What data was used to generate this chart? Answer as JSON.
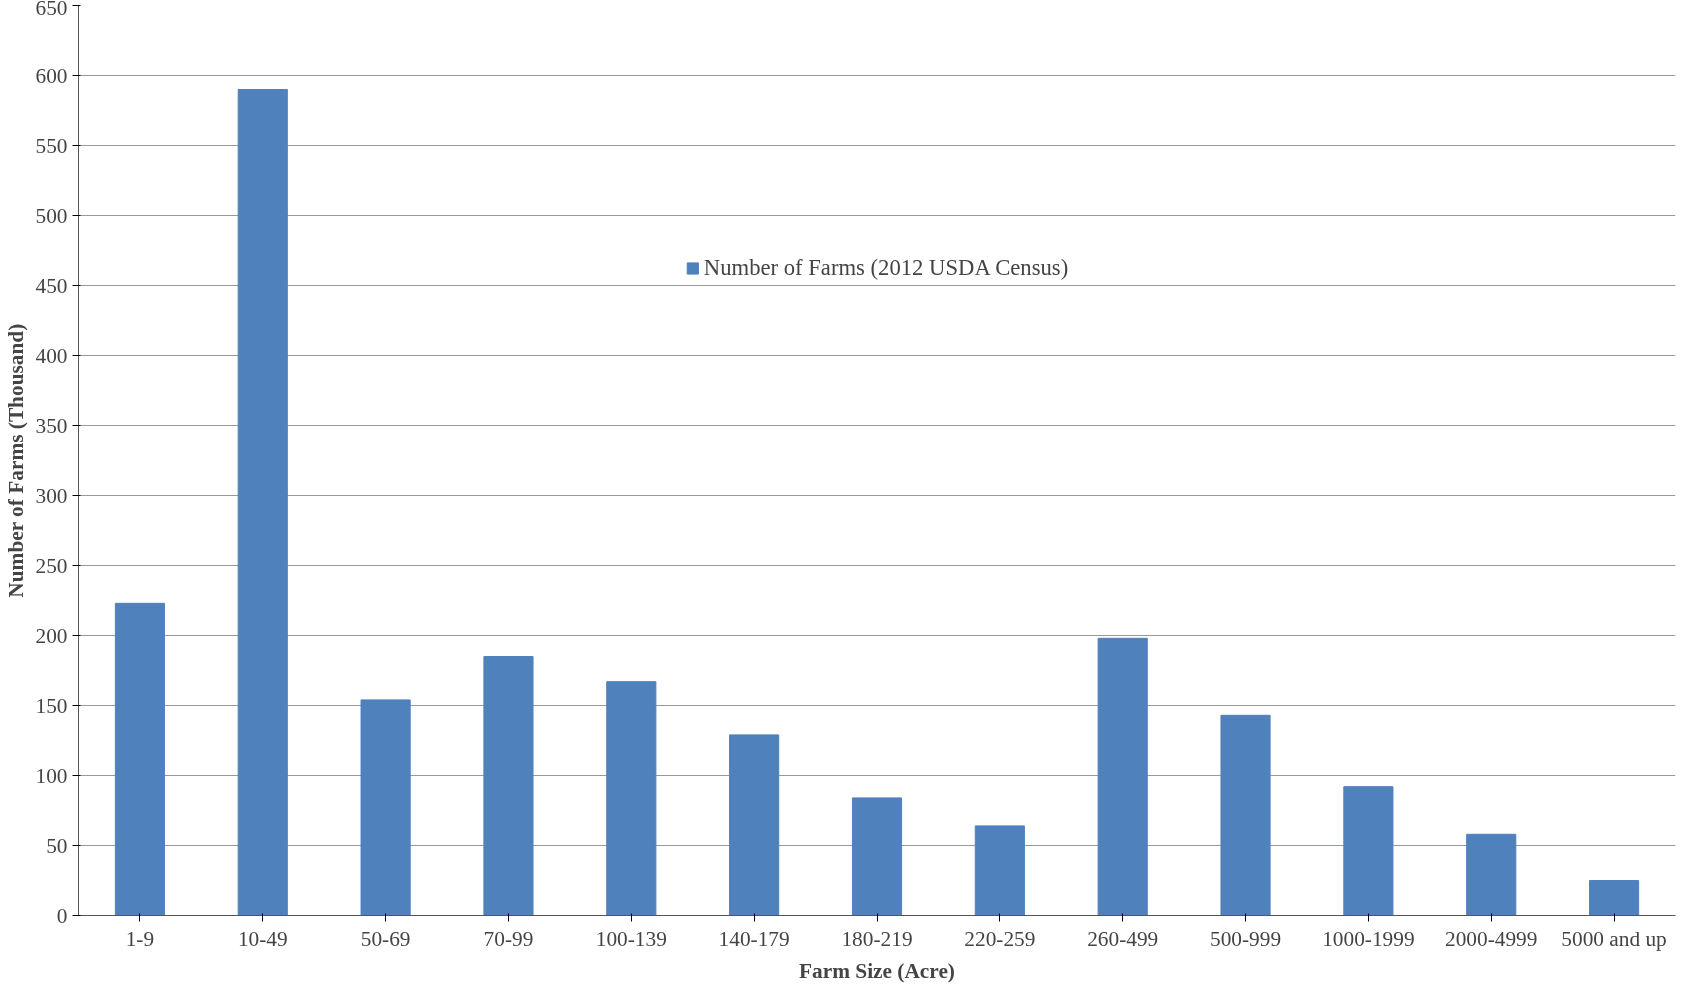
{
  "chart_data": {
    "type": "bar",
    "xlabel": "Farm Size (Acre)",
    "ylabel": "Number of Farms (Thousand)",
    "categories": [
      "1-9",
      "10-49",
      "50-69",
      "70-99",
      "100-139",
      "140-179",
      "180-219",
      "220-259",
      "260-499",
      "500-999",
      "1000-1999",
      "2000-4999",
      "5000 and up"
    ],
    "series": [
      {
        "name": "Number of Farms (2012 USDA Census)",
        "color": "#4f81bd",
        "values": [
          223,
          590,
          154,
          185,
          167,
          129,
          84,
          64,
          198,
          143,
          92,
          58,
          25
        ]
      }
    ],
    "ylim": [
      0,
      650
    ],
    "yticks": [
      0,
      50,
      100,
      150,
      200,
      250,
      300,
      350,
      400,
      450,
      500,
      550,
      600,
      650
    ],
    "grid": "y",
    "legend": "top"
  }
}
